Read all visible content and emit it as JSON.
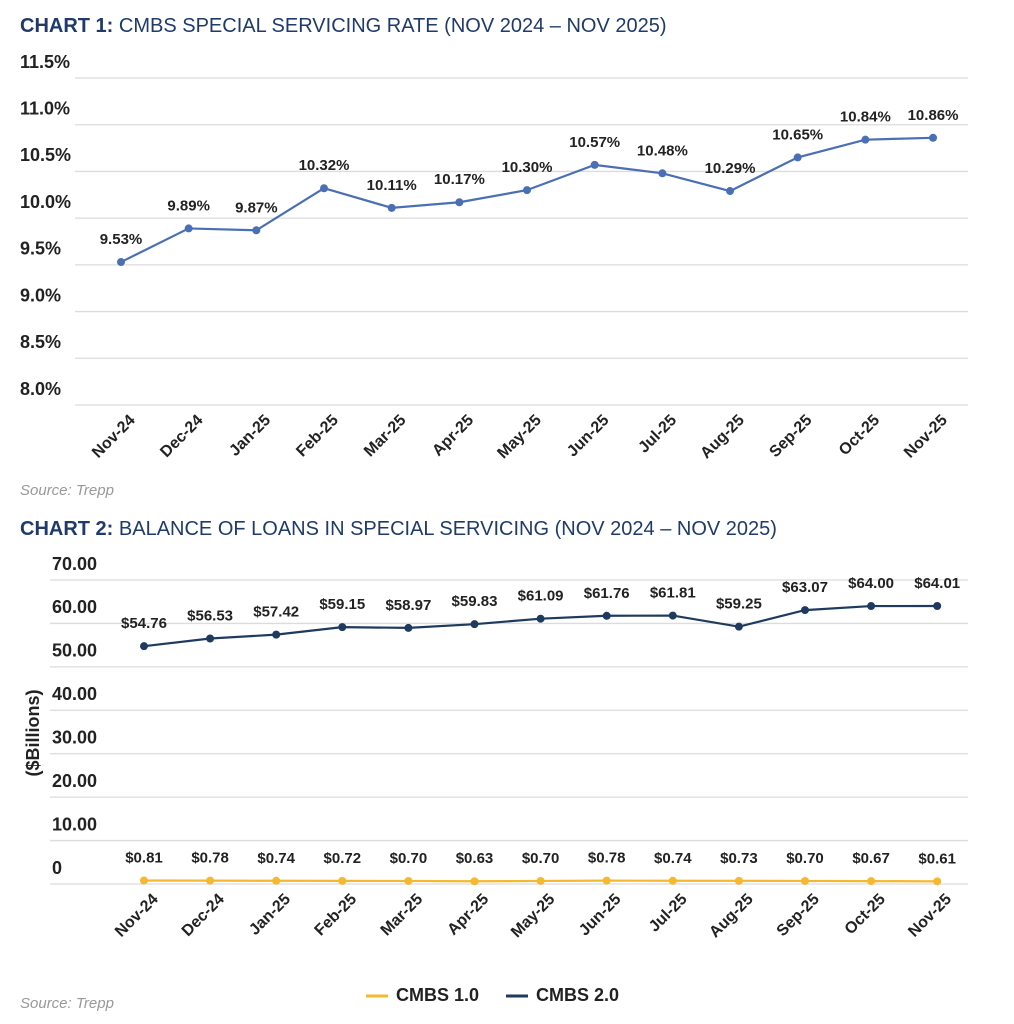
{
  "chart_data": [
    {
      "type": "line",
      "title": "CHART 1: CMBS SPECIAL SERVICING RATE (NOV 2024 – NOV 2025)",
      "source": "Source: Trepp",
      "categories": [
        "Nov-24",
        "Dec-24",
        "Jan-25",
        "Feb-25",
        "Mar-25",
        "Apr-25",
        "May-25",
        "Jun-25",
        "Jul-25",
        "Aug-25",
        "Sep-25",
        "Oct-25",
        "Nov-25"
      ],
      "values": [
        9.53,
        9.89,
        9.87,
        10.32,
        10.11,
        10.17,
        10.3,
        10.57,
        10.48,
        10.29,
        10.65,
        10.84,
        10.86
      ],
      "value_labels": [
        "9.53%",
        "9.89%",
        "9.87%",
        "10.32%",
        "10.11%",
        "10.17%",
        "10.30%",
        "10.57%",
        "10.48%",
        "10.29%",
        "10.65%",
        "10.84%",
        "10.86%"
      ],
      "color": "#4a6fb5",
      "ylim": [
        8.0,
        11.5
      ],
      "yticks": [
        {
          "value": 8.0,
          "label": "8.0%"
        },
        {
          "value": 8.5,
          "label": "8.5%"
        },
        {
          "value": 9.0,
          "label": "9.0%"
        },
        {
          "value": 9.5,
          "label": "9.5%"
        },
        {
          "value": 10.0,
          "label": "10.0%"
        },
        {
          "value": 10.5,
          "label": "10.5%"
        },
        {
          "value": 11.0,
          "label": "11.0%"
        },
        {
          "value": 11.5,
          "label": "11.5%"
        }
      ],
      "grid": true
    },
    {
      "type": "line",
      "title": "CHART 2: BALANCE OF LOANS IN SPECIAL SERVICING (NOV 2024 – NOV 2025)",
      "source": "Source: Trepp",
      "y_label": "($Billions)",
      "categories": [
        "Nov-24",
        "Dec-24",
        "Jan-25",
        "Feb-25",
        "Mar-25",
        "Apr-25",
        "May-25",
        "Jun-25",
        "Jul-25",
        "Aug-25",
        "Sep-25",
        "Oct-25",
        "Nov-25"
      ],
      "series": [
        {
          "name": "CMBS 1.0",
          "color": "#f5b82e",
          "values": [
            0.81,
            0.78,
            0.74,
            0.72,
            0.7,
            0.63,
            0.7,
            0.78,
            0.74,
            0.73,
            0.7,
            0.67,
            0.61
          ],
          "value_labels": [
            "$0.81",
            "$0.78",
            "$0.74",
            "$0.72",
            "$0.70",
            "$0.63",
            "$0.70",
            "$0.78",
            "$0.74",
            "$0.73",
            "$0.70",
            "$0.67",
            "$0.61"
          ]
        },
        {
          "name": "CMBS 2.0",
          "color": "#1f3a5f",
          "values": [
            54.76,
            56.53,
            57.42,
            59.15,
            58.97,
            59.83,
            61.09,
            61.76,
            61.81,
            59.25,
            63.07,
            64.0,
            64.01
          ],
          "value_labels": [
            "$54.76",
            "$56.53",
            "$57.42",
            "$59.15",
            "$58.97",
            "$59.83",
            "$61.09",
            "$61.76",
            "$61.81",
            "$59.25",
            "$63.07",
            "$64.00",
            "$64.01"
          ]
        }
      ],
      "ylim": [
        0,
        70
      ],
      "yticks": [
        0,
        {
          "value": 10,
          "label": "10.00"
        },
        {
          "value": 20,
          "label": "20.00"
        },
        {
          "value": 30,
          "label": "30.00"
        },
        {
          "value": 40,
          "label": "40.00"
        },
        {
          "value": 50,
          "label": "50.00"
        },
        {
          "value": 60,
          "label": "60.00"
        },
        {
          "value": 70,
          "label": "70.00"
        }
      ],
      "grid": true,
      "legend": "bottom"
    }
  ]
}
